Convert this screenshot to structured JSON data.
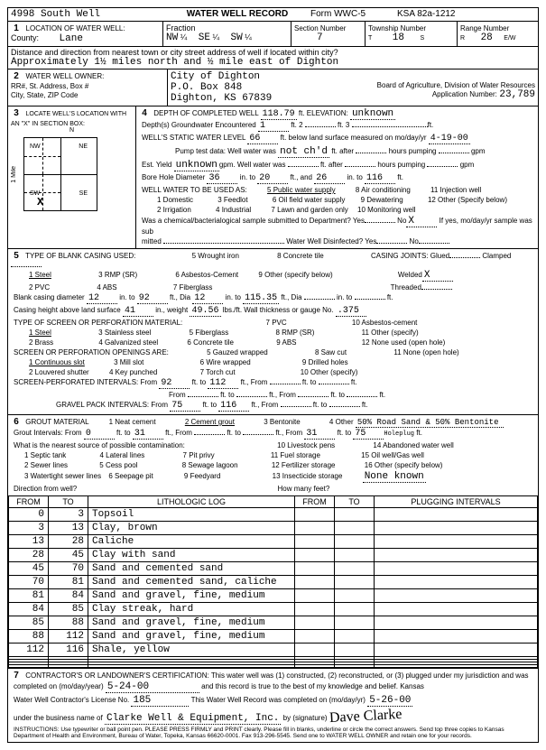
{
  "header": {
    "well_no": "4998  South Well",
    "title": "WATER WELL RECORD",
    "form": "Form WWC-5",
    "ksa": "KSA 82a-1212"
  },
  "loc": {
    "label": "LOCATION OF WATER WELL:",
    "county_lbl": "County:",
    "county": "Lane",
    "fraction_lbl": "Fraction",
    "f1": "NW",
    "f2": "¼",
    "f3": "SE",
    "f4": "¼",
    "f5": "SW",
    "f6": "¼",
    "section_lbl": "Section Number",
    "section": "7",
    "township_lbl": "Township Number",
    "township": "18",
    "ts": "S",
    "range_lbl": "Range Number",
    "range": "28",
    "rew": "E/W",
    "re": "R",
    "dist_lbl": "Distance and direction from nearest town or city street address of well if located within city?",
    "dist": "Approximately 1½ miles north and ½ mile east of Dighton"
  },
  "owner": {
    "label": "WATER WELL OWNER:",
    "line1_lbl": "RR#, St. Address, Box #",
    "line2_lbl": "City, State, ZIP Code",
    "name": "City of Dighton",
    "addr": "P.O. Box 848",
    "csz": "Dighton, KS  67839",
    "board": "Board of Agriculture, Division of Water Resources",
    "app_lbl": "Application Number:",
    "app": "23,789"
  },
  "s3": {
    "label": "LOCATE WELL'S LOCATION WITH AN \"X\" IN SECTION BOX:",
    "n": "N",
    "nw": "NW",
    "ne": "NE",
    "sw": "SW",
    "se": "SE",
    "x": "X",
    "mile": "1 Mile"
  },
  "s4": {
    "depth_lbl": "DEPTH OF COMPLETED WELL",
    "depth": "118.79",
    "elev_lbl": "ft. ELEVATION:",
    "elev": "unknown",
    "gw_lbl": "Depth(s) Groundwater Encountered",
    "gw1": "1",
    "gw2": "ft.   2",
    "gw3": "ft.   3",
    "gw4": "ft.",
    "static_lbl": "WELL'S STATIC WATER LEVEL",
    "static": "66",
    "static2": "ft. below land surface measured on mo/day/yr",
    "static_date": "4-19-00",
    "pump_lbl": "Pump test data:  Well water was",
    "pump": "not ch'd",
    "pump2": "ft. after",
    "pump3": "hours pumping",
    "pump4": "gpm",
    "yield_lbl": "Est. Yield",
    "yield": "unknown",
    "yield2": "gpm.  Well water was",
    "yield3": "ft. after",
    "yield4": "hours pumping",
    "yield5": "gpm",
    "bore_lbl": "Bore Hole Diameter",
    "bore1": "36",
    "bore2": "in. to",
    "bore3": "20",
    "bore4": "ft., and",
    "bore5": "26",
    "bore6": "in. to",
    "bore7": "116",
    "bore8": "ft.",
    "use_lbl": "WELL WATER TO BE USED AS:",
    "u1": "1  Domestic",
    "u2": "3  Feedlot",
    "u3": "5  Public water supply",
    "u4": "8  Air conditioning",
    "u5": "11  Injection well",
    "u6": "2  Irrigation",
    "u7": "4  Industrial",
    "u8": "6  Oil field water supply",
    "u9": "9  Dewatering",
    "u10": "12  Other (Specify below)",
    "u11": "7  Lawn and garden only",
    "u12": "10  Monitoring well",
    "chem_lbl": "Was a chemical/bacterialogical sample submitted to Department? Yes",
    "chem_no": "No",
    "chem_x": "X",
    "chem2": "If yes, mo/day/yr sample was sub",
    "mitted": "mitted",
    "dis": "Water Well Disinfected?  Yes",
    "dis_no": "No"
  },
  "s5": {
    "label": "TYPE OF BLANK CASING USED:",
    "c": [
      "1 Steel",
      "3 RMP (SR)",
      "5 Wrought iron",
      "8 Concrete tile",
      "2 PVC",
      "4 ABS",
      "6 Asbestos-Cement",
      "9 Other (specify below)",
      "7 Fiberglass"
    ],
    "joints_lbl": "CASING JOINTS: Glued",
    "j2": "Clamped",
    "j3": "Welded",
    "jx": "X",
    "j4": "Threaded",
    "bcd_lbl": "Blank casing diameter",
    "bcd1": "12",
    "bcd2": "in. to",
    "bcd3": "92",
    "bcd4": "ft., Dia",
    "bcd5": "12",
    "bcd6": "in. to",
    "bcd7": "115.35",
    "bcd8": "ft., Dia",
    "bcd9": "in. to",
    "bcd10": "ft.",
    "ch_lbl": "Casing height above land surface",
    "ch": "41",
    "ch2": "in., weight",
    "ch3": "49.56",
    "ch4": "lbs./ft. Wall thickness or gauge No.",
    "ch5": ".375",
    "screen_lbl": "TYPE OF SCREEN OR PERFORATION MATERIAL:",
    "sc": [
      "1 Steel",
      "3 Stainless steel",
      "5 Fiberglass",
      "8 RMP (SR)",
      "2 Brass",
      "4 Galvanized steel",
      "6 Concrete tile",
      "9 ABS",
      "7 PVC",
      "10 Asbestos-cement",
      "11 Other (specify)",
      "12 None used (open hole)"
    ],
    "open_lbl": "SCREEN OR PERFORATION OPENINGS ARE:",
    "op": [
      "1 Continuous slot",
      "3 Mill slot",
      "5 Gauzed wrapped",
      "8 Saw cut",
      "11 None (open hole)",
      "2 Louvered shutter",
      "4 Key punched",
      "6 Wire wrapped",
      "9 Drilled holes",
      "7 Torch cut",
      "10 Other (specify)"
    ],
    "spi_lbl": "SCREEN-PERFORATED INTERVALS:   From",
    "spi1": "92",
    "spi2": "ft. to",
    "spi3": "112",
    "spi4": "ft., From",
    "spi5": "ft. to",
    "spi6": "ft.",
    "spi7": "From",
    "spi8": "ft. to",
    "spi9": "ft., From",
    "spi10": "ft. to",
    "spi11": "ft.",
    "gp_lbl": "GRAVEL PACK INTERVALS:     From",
    "gp1": "75",
    "gp2": "ft. to",
    "gp3": "116",
    "gp4": "ft., From",
    "gp5": "ft. to",
    "gp6": "ft."
  },
  "s6": {
    "label": "GROUT MATERIAL",
    "g": [
      "1 Neat cement",
      "2 Cement grout",
      "3 Bentonite"
    ],
    "g4_lbl": "4 Other",
    "g4": "50% Road Sand & 50% Bentonite",
    "gi_lbl": "Grout Intervals:   From",
    "gi1": "0",
    "gi2": "ft. to",
    "gi3": "31",
    "gi4": "ft., From",
    "gi5": "ft. to",
    "gi6": "ft., From",
    "gi7": "31",
    "gi8": "ft. to",
    "gi9": "75",
    "gi10": "ft.",
    "hole": "Holeplug",
    "src_lbl": "What is the nearest source of possible contamination:",
    "src": [
      "1 Septic tank",
      "4 Lateral lines",
      "7 Pit privy",
      "10 Livestock pens",
      "14 Abandoned water well",
      "2 Sewer lines",
      "5 Cess pool",
      "8 Sewage lagoon",
      "11 Fuel storage",
      "15 Oil well/Gas well",
      "3 Watertight sewer lines",
      "6 Seepage pit",
      "9 Feedyard",
      "12 Fertilizer storage",
      "16 Other (specify below)",
      "13 Insecticide storage"
    ],
    "none": "None known",
    "dir_lbl": "Direction from well?",
    "feet_lbl": "How many feet?"
  },
  "lith": {
    "h": [
      "FROM",
      "TO",
      "LITHOLOGIC LOG",
      "FROM",
      "TO",
      "PLUGGING INTERVALS"
    ],
    "rows": [
      [
        "0",
        "3",
        "Topsoil"
      ],
      [
        "3",
        "13",
        "Clay, brown"
      ],
      [
        "13",
        "28",
        "Caliche"
      ],
      [
        "28",
        "45",
        "Clay with sand"
      ],
      [
        "45",
        "70",
        "Sand and cemented sand"
      ],
      [
        "70",
        "81",
        "Sand and cemented sand, caliche"
      ],
      [
        "81",
        "84",
        "Sand and gravel, fine, medium"
      ],
      [
        "84",
        "85",
        "Clay streak, hard"
      ],
      [
        "85",
        "88",
        "Sand and gravel, fine, medium"
      ],
      [
        "88",
        "112",
        "Sand and gravel, fine, medium"
      ],
      [
        "112",
        "116",
        "Shale, yellow"
      ]
    ]
  },
  "s7": {
    "text": "CONTRACTOR'S OR LANDOWNER'S CERTIFICATION: This water well was (1) constructed, (2) reconstructed, or (3) plugged under my jurisdiction and was",
    "comp_lbl": "completed on (mo/day/year)",
    "comp": "5-24-00",
    "comp2": "and this record is true to the best of my knowledge and belief. Kansas",
    "lic_lbl": "Water Well Contractor's License No.",
    "lic": "185",
    "lic2": "This Water Well Record was completed on (mo/day/yr)",
    "lic3": "5-26-00",
    "bus_lbl": "under the business name of",
    "bus": "Clarke Well & Equipment, Inc.",
    "sig_lbl": "by (signature)",
    "sig": "Dave Clarke",
    "instr": "INSTRUCTIONS: Use typewriter or ball point pen. PLEASE PRESS FIRMLY and PRINT clearly. Please fill in blanks, underline or circle the correct answers. Send top three copies to Kansas Department of Health and Environment, Bureau of Water, Topeka, Kansas 66620-0001. Fax 913-296-5545. Send one to WATER WELL OWNER and retain one for your records."
  }
}
